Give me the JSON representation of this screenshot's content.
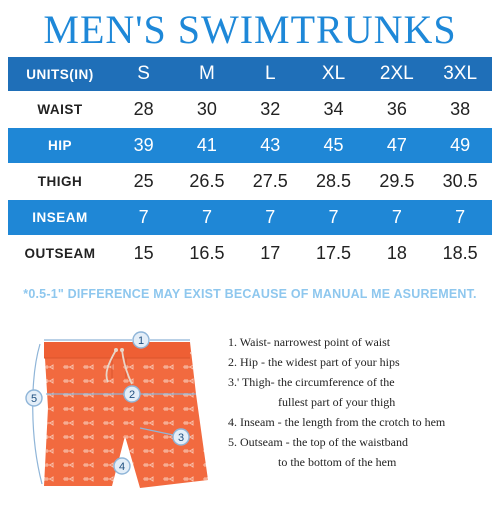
{
  "title": "MEN'S SWIMTRUNKS",
  "table": {
    "header": {
      "label": "UNITS(IN)",
      "sizes": [
        "S",
        "M",
        "L",
        "XL",
        "2XL",
        "3XL"
      ]
    },
    "rows": [
      {
        "label": "WAIST",
        "values": [
          "28",
          "30",
          "32",
          "34",
          "36",
          "38"
        ]
      },
      {
        "label": "HIP",
        "values": [
          "39",
          "41",
          "43",
          "45",
          "47",
          "49"
        ]
      },
      {
        "label": "THIGH",
        "values": [
          "25",
          "26.5",
          "27.5",
          "28.5",
          "29.5",
          "30.5"
        ]
      },
      {
        "label": "INSEAM",
        "values": [
          "7",
          "7",
          "7",
          "7",
          "7",
          "7"
        ]
      },
      {
        "label": "OUTSEAM",
        "values": [
          "15",
          "16.5",
          "17",
          "17.5",
          "18",
          "18.5"
        ]
      }
    ]
  },
  "note": "*0.5-1\" DIFFERENCE MAY EXIST BECAUSE OF MANUAL ME ASUREMENT.",
  "diagram": {
    "markers": [
      "1",
      "2",
      "3",
      "4",
      "5"
    ],
    "colors": {
      "shorts": "#f26a3f",
      "print": "#f7c2ae",
      "marker_border": "#8fb5d8",
      "marker_fill": "#e4eef8",
      "line": "#8fb5d8"
    }
  },
  "guide": [
    "1. Waist- narrowest point of waist",
    "2. Hip - the widest part of your hips",
    "3.' Thigh- the circumference of the",
    "fullest part of your thigh",
    "4. Inseam - the length from the crotch to hem",
    "5. Outseam - the top of the waistband",
    "to the bottom of the hem"
  ]
}
